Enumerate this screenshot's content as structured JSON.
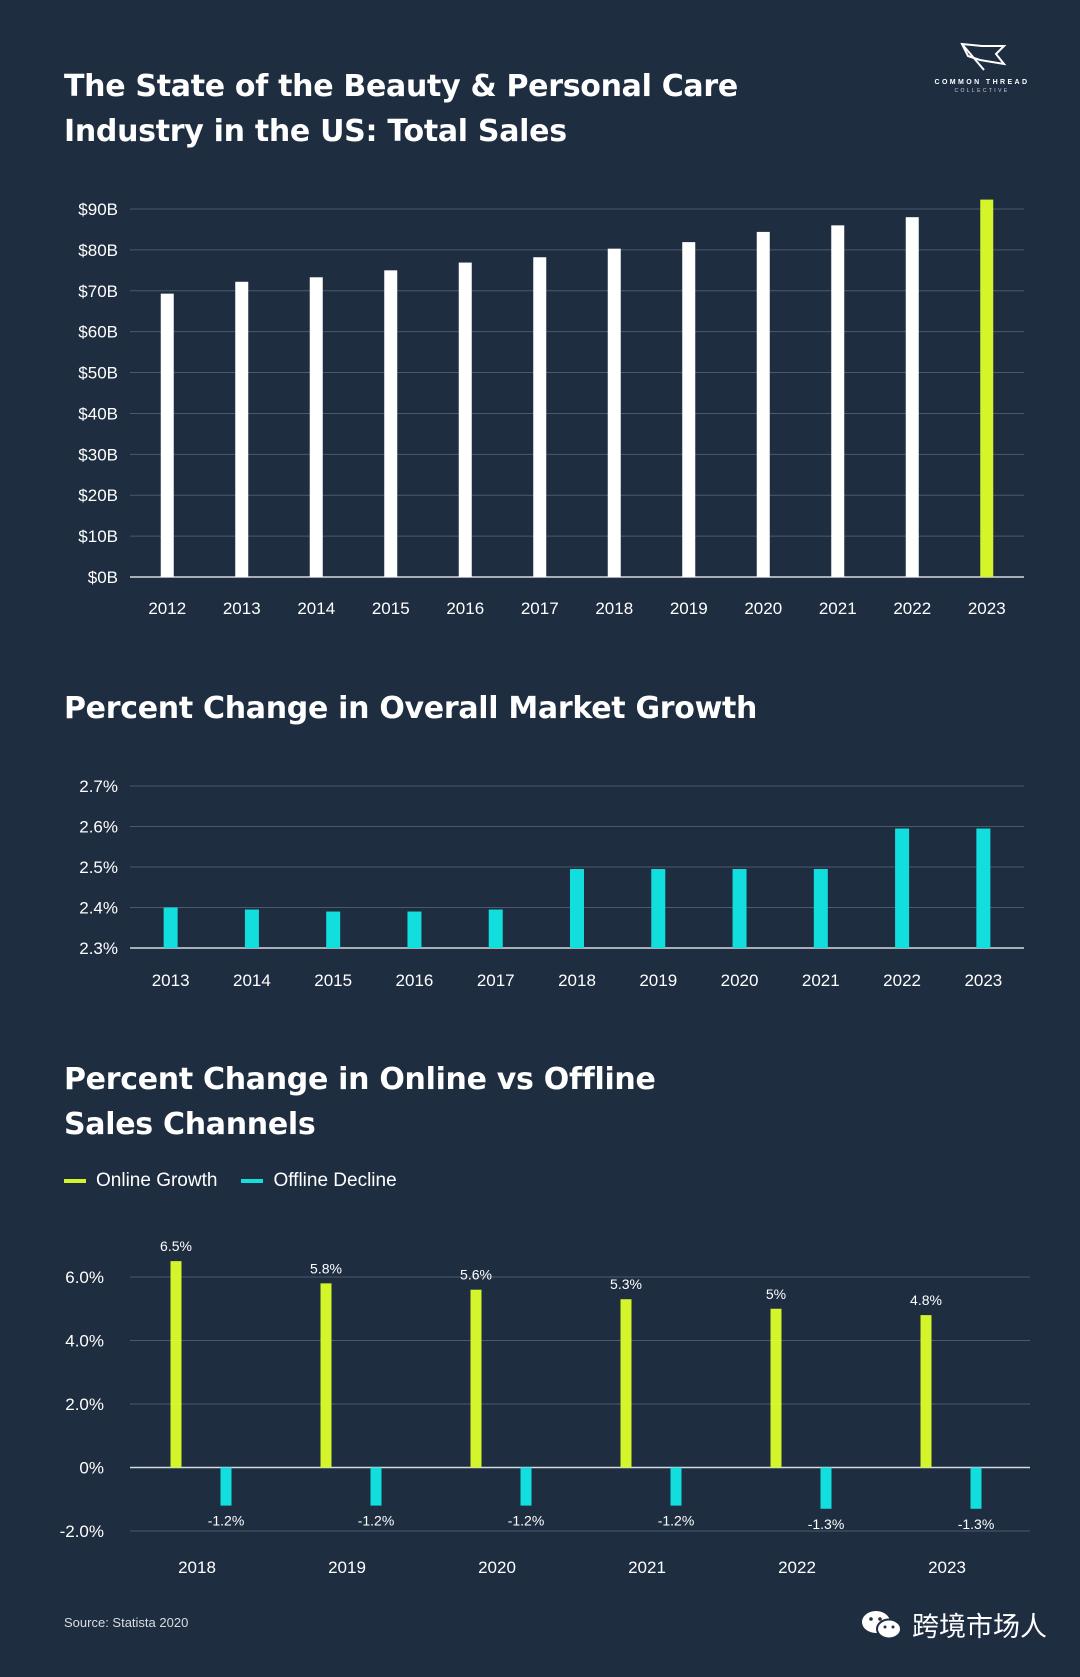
{
  "logo": {
    "brand": "COMMON THREAD",
    "sub": "COLLECTIVE",
    "icon": "flag-icon"
  },
  "chart1": {
    "title": "The State of the Beauty & Personal Care\nIndustry in the US: Total Sales"
  },
  "chart2": {
    "title": "Percent Change in Overall Market Growth"
  },
  "chart3": {
    "title": "Percent Change in Online vs Offline\nSales Channels"
  },
  "legend": {
    "online": "Online Growth",
    "offline": "Offline Decline"
  },
  "colors": {
    "background": "#1e2d40",
    "white_bar": "#ffffff",
    "lime": "#d4f52a",
    "cyan": "#12dede",
    "grid": "#4a5a6c",
    "axis": "#d4dae0"
  },
  "source": "Source: Statista 2020",
  "watermark": {
    "text": "跨境市场人",
    "icon": "wechat-icon"
  },
  "chart_data": [
    {
      "type": "bar",
      "title": "The State of the Beauty & Personal Care Industry in the US: Total Sales",
      "categories": [
        "2012",
        "2013",
        "2014",
        "2015",
        "2016",
        "2017",
        "2018",
        "2019",
        "2020",
        "2021",
        "2022",
        "2023"
      ],
      "values": [
        69.3,
        72.2,
        73.3,
        75.0,
        76.9,
        78.2,
        80.3,
        81.9,
        84.4,
        86.0,
        88.0,
        92.3
      ],
      "highlight_index": 11,
      "ylim": [
        0,
        90
      ],
      "yticks": [
        0,
        10,
        20,
        30,
        40,
        50,
        60,
        70,
        80,
        90
      ],
      "ytick_labels": [
        "$0B",
        "$10B",
        "$20B",
        "$30B",
        "$40B",
        "$50B",
        "$60B",
        "$70B",
        "$80B",
        "$90B"
      ],
      "xlabel": "",
      "ylabel": "",
      "grid": true
    },
    {
      "type": "bar",
      "title": "Percent Change in Overall Market Growth",
      "categories": [
        "2013",
        "2014",
        "2015",
        "2016",
        "2017",
        "2018",
        "2019",
        "2020",
        "2021",
        "2022",
        "2023"
      ],
      "values": [
        2.4,
        2.395,
        2.39,
        2.39,
        2.395,
        2.495,
        2.495,
        2.495,
        2.495,
        2.595,
        2.595
      ],
      "ylim": [
        2.3,
        2.7
      ],
      "yticks": [
        2.3,
        2.4,
        2.5,
        2.6,
        2.7
      ],
      "ytick_labels": [
        "2.3%",
        "2.4%",
        "2.5%",
        "2.6%",
        "2.7%"
      ],
      "xlabel": "",
      "ylabel": "",
      "grid": true
    },
    {
      "type": "bar",
      "title": "Percent Change in Online vs Offline Sales Channels",
      "categories": [
        "2018",
        "2019",
        "2020",
        "2021",
        "2022",
        "2023"
      ],
      "series": [
        {
          "name": "Online Growth",
          "values": [
            6.5,
            5.8,
            5.6,
            5.3,
            5,
            4.8
          ],
          "labels": [
            "6.5%",
            "5.8%",
            "5.6%",
            "5.3%",
            "5%",
            "4.8%"
          ]
        },
        {
          "name": "Offline Decline",
          "values": [
            -1.2,
            -1.2,
            -1.2,
            -1.2,
            -1.3,
            -1.3
          ],
          "labels": [
            "-1.2%",
            "-1.2%",
            "-1.2%",
            "-1.2%",
            "-1.3%",
            "-1.3%"
          ]
        }
      ],
      "ylim": [
        -2.0,
        6.0
      ],
      "yticks": [
        -2,
        0,
        2,
        4,
        6
      ],
      "ytick_labels": [
        "-2.0%",
        "0%",
        "2.0%",
        "4.0%",
        "6.0%"
      ],
      "legend": "top-left",
      "xlabel": "",
      "ylabel": "",
      "grid": true
    }
  ]
}
